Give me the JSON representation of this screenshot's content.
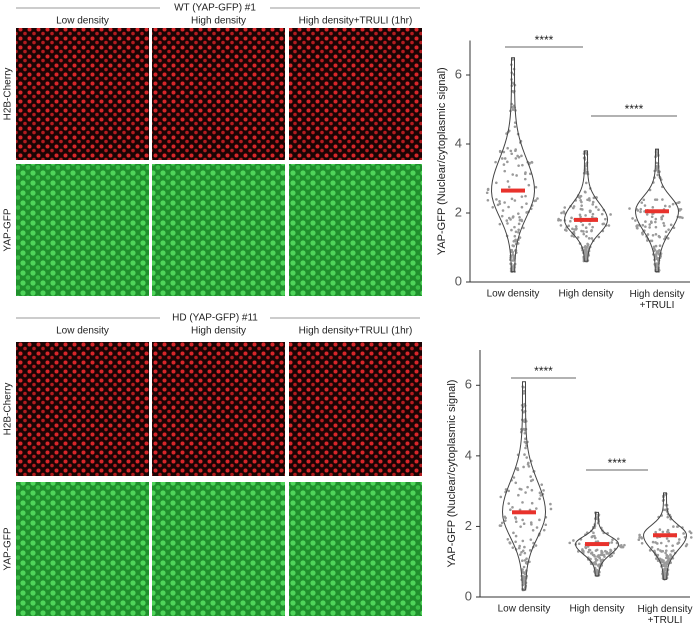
{
  "panels": [
    {
      "title": "WT (YAP-GFP) #1",
      "columns": [
        "Low density",
        "High density",
        "High density+TRULI (1hr)"
      ],
      "rows": [
        "H2B-Cherry",
        "YAP-GFP"
      ],
      "chart_data": {
        "type": "violin",
        "ylabel": "YAP-GFP (Nuclear/cytoplasmic signal)",
        "categories": [
          "Low density",
          "High density",
          "High density\n+TRULI"
        ],
        "values": [
          2.65,
          1.8,
          2.05
        ],
        "mins": [
          0.3,
          0.6,
          0.3
        ],
        "maxs": [
          6.5,
          3.8,
          3.85
        ],
        "color": "#e8322c",
        "ylim": [
          0,
          7
        ],
        "yticks": [
          0,
          2,
          4,
          6
        ],
        "annotations": [
          "****",
          "****"
        ]
      }
    },
    {
      "title": "HD (YAP-GFP) #11",
      "columns": [
        "Low density",
        "High density",
        "High density+TRULI (1hr)"
      ],
      "rows": [
        "H2B-Cherry",
        "YAP-GFP"
      ],
      "chart_data": {
        "type": "violin",
        "ylabel": "YAP-GFP (Nuclear/cytoplasmic signal)",
        "categories": [
          "Low density",
          "High density",
          "High density\n+TRULI"
        ],
        "values": [
          2.4,
          1.5,
          1.75
        ],
        "mins": [
          0.2,
          0.6,
          0.5
        ],
        "maxs": [
          6.1,
          2.4,
          2.95
        ],
        "color": "#e8322c",
        "ylim": [
          0,
          7
        ],
        "yticks": [
          0,
          2,
          4,
          6
        ],
        "annotations": [
          "****",
          "****"
        ]
      }
    }
  ]
}
